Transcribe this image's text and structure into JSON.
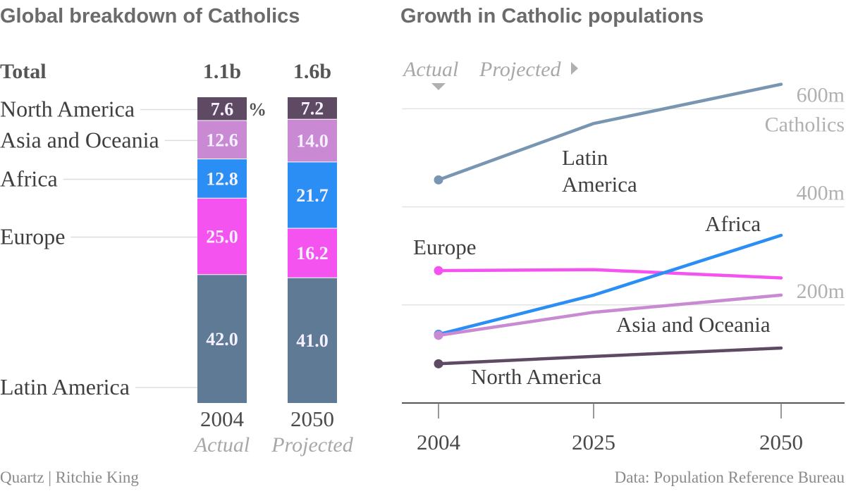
{
  "footer": {
    "credit": "Quartz | Ritchie King",
    "source": "Data: Population Reference Bureau"
  },
  "chart_data": [
    {
      "type": "bar",
      "stacked": true,
      "title": "Global breakdown of Catholics",
      "total_label": "Total",
      "unit_label": "%",
      "categories": [
        "2004",
        "2050"
      ],
      "category_status": [
        "Actual",
        "Projected"
      ],
      "totals": [
        "1.1b",
        "1.6b"
      ],
      "series": [
        {
          "name": "Latin America",
          "values": [
            42.0,
            41.0
          ],
          "labels": [
            "42.0",
            "41.0"
          ],
          "color": "#5f7a95"
        },
        {
          "name": "Europe",
          "values": [
            25.0,
            16.2
          ],
          "labels": [
            "25.0",
            "16.2"
          ],
          "color": "#f553ef"
        },
        {
          "name": "Africa",
          "values": [
            12.8,
            21.7
          ],
          "labels": [
            "12.8",
            "21.7"
          ],
          "color": "#2a8ef4"
        },
        {
          "name": "Asia and Oceania",
          "values": [
            12.6,
            14.0
          ],
          "labels": [
            "12.6",
            "14.0"
          ],
          "color": "#c98ad3"
        },
        {
          "name": "North America",
          "values": [
            7.6,
            7.2
          ],
          "labels": [
            "7.6",
            "7.2"
          ],
          "color": "#5e4a63"
        }
      ]
    },
    {
      "type": "line",
      "title": "Growth in Catholic populations",
      "status_labels": {
        "actual": "Actual",
        "projected": "Projected"
      },
      "x": [
        "2004",
        "2025",
        "2050"
      ],
      "ylim": [
        0,
        650
      ],
      "yticks": [
        {
          "value": 200,
          "label": "200m"
        },
        {
          "value": 400,
          "label": "400m"
        },
        {
          "value": 600,
          "label": "600m"
        }
      ],
      "y_unit_label": "Catholics",
      "series": [
        {
          "name": "Latin America",
          "label_lines": [
            "Latin",
            "America"
          ],
          "values": [
            455,
            570,
            650
          ],
          "color": "#7896b1"
        },
        {
          "name": "Europe",
          "label_lines": [
            "Europe"
          ],
          "values": [
            270,
            272,
            255
          ],
          "color": "#f553ef"
        },
        {
          "name": "Africa",
          "label_lines": [
            "Africa"
          ],
          "values": [
            140,
            220,
            342
          ],
          "color": "#2a8ef4"
        },
        {
          "name": "Asia and Oceania",
          "label_lines": [
            "Asia and Oceania"
          ],
          "values": [
            138,
            185,
            220
          ],
          "color": "#c98ad3"
        },
        {
          "name": "North America",
          "label_lines": [
            "North America"
          ],
          "values": [
            80,
            95,
            112
          ],
          "color": "#5e4a63"
        }
      ]
    }
  ]
}
